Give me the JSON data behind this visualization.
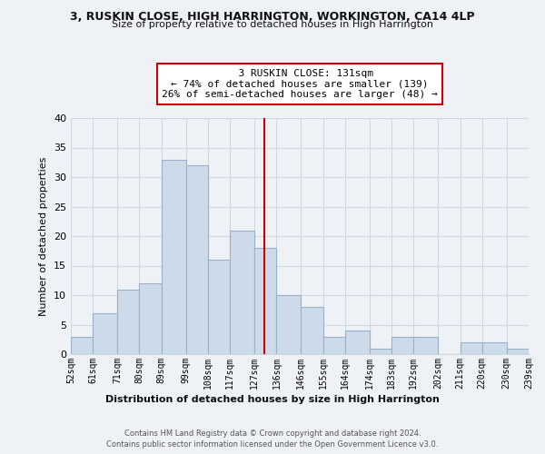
{
  "title1": "3, RUSKIN CLOSE, HIGH HARRINGTON, WORKINGTON, CA14 4LP",
  "title2": "Size of property relative to detached houses in High Harrington",
  "xlabel": "Distribution of detached houses by size in High Harrington",
  "ylabel": "Number of detached properties",
  "bin_edges": [
    52,
    61,
    71,
    80,
    89,
    99,
    108,
    117,
    127,
    136,
    146,
    155,
    164,
    174,
    183,
    192,
    202,
    211,
    220,
    230,
    239
  ],
  "bin_labels": [
    "52sqm",
    "61sqm",
    "71sqm",
    "80sqm",
    "89sqm",
    "99sqm",
    "108sqm",
    "117sqm",
    "127sqm",
    "136sqm",
    "146sqm",
    "155sqm",
    "164sqm",
    "174sqm",
    "183sqm",
    "192sqm",
    "202sqm",
    "211sqm",
    "220sqm",
    "230sqm",
    "239sqm"
  ],
  "counts": [
    3,
    7,
    11,
    12,
    33,
    32,
    16,
    21,
    18,
    10,
    8,
    3,
    4,
    1,
    3,
    3,
    0,
    2,
    2,
    1
  ],
  "bar_facecolor": "#cddaea",
  "bar_edgecolor": "#9ab0c8",
  "grid_color": "#d0d8e0",
  "property_line_x": 131,
  "annotation_title": "3 RUSKIN CLOSE: 131sqm",
  "annotation_line1": "← 74% of detached houses are smaller (139)",
  "annotation_line2": "26% of semi-detached houses are larger (48) →",
  "annotation_box_facecolor": "#ffffff",
  "annotation_box_edgecolor": "#cc0000",
  "property_line_color": "#cc0000",
  "ylim": [
    0,
    40
  ],
  "yticks": [
    0,
    5,
    10,
    15,
    20,
    25,
    30,
    35,
    40
  ],
  "footer_line1": "Contains HM Land Registry data © Crown copyright and database right 2024.",
  "footer_line2": "Contains public sector information licensed under the Open Government Licence v3.0.",
  "background_color": "#eef2f7"
}
